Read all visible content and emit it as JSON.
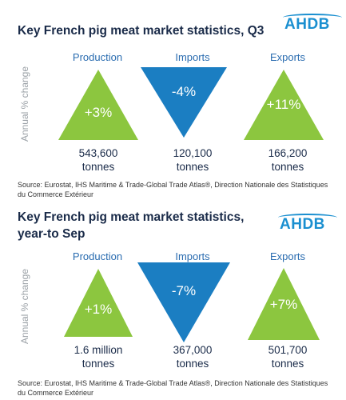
{
  "chart_data": [
    {
      "type": "infographic",
      "title": "Key French pig meat market statistics, Q3",
      "ylabel": "Annual % change",
      "categories": [
        "Production",
        "Imports",
        "Exports"
      ],
      "values": [
        3,
        -4,
        11
      ],
      "percent_labels": [
        "+3%",
        "-4%",
        "+11%"
      ],
      "amount_labels": [
        [
          "543,600",
          "tonnes"
        ],
        [
          "120,100",
          "tonnes"
        ],
        [
          "166,200",
          "tonnes"
        ]
      ],
      "source": "Source: Eurostat, IHS Maritime & Trade-Global Trade Atlas®, Direction Nationale des Statistiques du Commerce Extérieur"
    },
    {
      "type": "infographic",
      "title": "Key French pig meat market statistics, year-to Sep",
      "ylabel": "Annual % change",
      "categories": [
        "Production",
        "Imports",
        "Exports"
      ],
      "values": [
        1,
        -7,
        7
      ],
      "percent_labels": [
        "+1%",
        "-7%",
        "+7%"
      ],
      "amount_labels": [
        [
          "1.6 million",
          "tonnes"
        ],
        [
          "367,000",
          "tonnes"
        ],
        [
          "501,700",
          "tonnes"
        ]
      ],
      "source": "Source: Eurostat, IHS Maritime & Trade-Global Trade Atlas®, Direction Nationale des Statistiques du Commerce Extérieur"
    }
  ],
  "logo_text": "AHDB",
  "colors": {
    "up": "#8cc63f",
    "down": "#1b7ec2",
    "header": "#2a6cb0",
    "title": "#1a2b49"
  }
}
